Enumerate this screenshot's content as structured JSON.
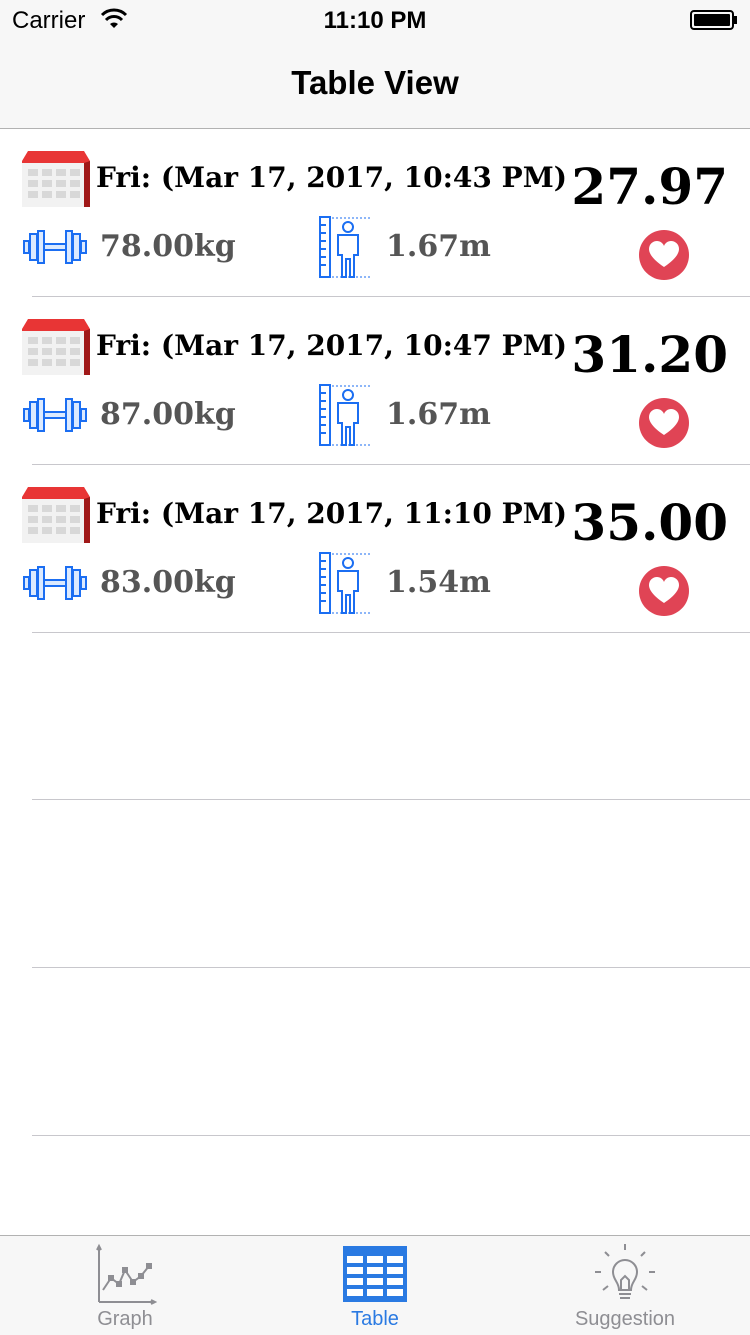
{
  "status_bar": {
    "carrier": "Carrier",
    "time": "11:10 PM"
  },
  "nav": {
    "title": "Table View"
  },
  "records": [
    {
      "date": "Fri: (Mar 17, 2017, 10:43 PM)",
      "bmi": "27.97",
      "weight": "78.00kg",
      "height": "1.67m"
    },
    {
      "date": "Fri: (Mar 17, 2017, 10:47 PM)",
      "bmi": "31.20",
      "weight": "87.00kg",
      "height": "1.67m"
    },
    {
      "date": "Fri: (Mar 17, 2017, 11:10 PM)",
      "bmi": "35.00",
      "weight": "83.00kg",
      "height": "1.54m"
    }
  ],
  "tabs": [
    {
      "label": "Graph",
      "icon": "graph-icon"
    },
    {
      "label": "Table",
      "icon": "table-icon",
      "active": true
    },
    {
      "label": "Suggestion",
      "icon": "lightbulb-icon"
    }
  ],
  "colors": {
    "accent": "#2a7ae2",
    "heart": "#e04455",
    "calendar": "#cc2222"
  }
}
